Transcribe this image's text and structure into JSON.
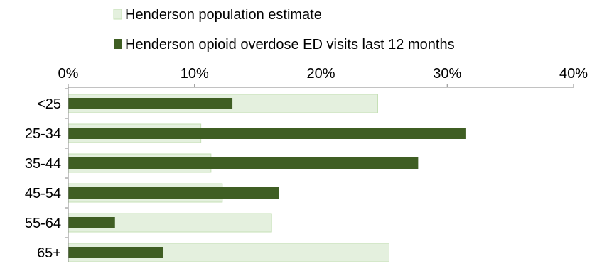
{
  "chart_data": {
    "type": "bar",
    "orientation": "horizontal",
    "categories": [
      "<25",
      "25-34",
      "35-44",
      "45-54",
      "55-64",
      "65+"
    ],
    "series": [
      {
        "name": "Henderson population estimate",
        "color": "#e4f0de",
        "border_color": "#c6e0b6",
        "values": [
          24.5,
          10.5,
          11.3,
          12.2,
          16.1,
          25.4
        ]
      },
      {
        "name": "Henderson opioid overdose ED visits last 12 months",
        "color": "#3f5e23",
        "values": [
          13.0,
          31.5,
          27.7,
          16.7,
          3.7,
          7.5
        ]
      }
    ],
    "xlim": [
      0,
      40
    ],
    "x_ticks": [
      0,
      10,
      20,
      30,
      40
    ],
    "tick_format": "percent",
    "x_axis_position": "top",
    "legend_position": "top",
    "grid": false
  }
}
